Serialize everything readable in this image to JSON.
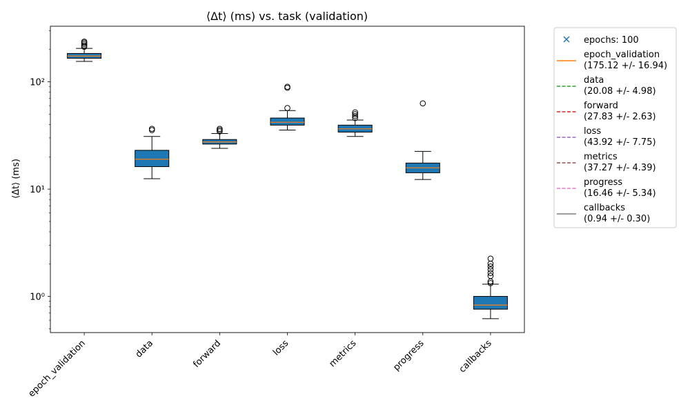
{
  "chart_data": {
    "type": "box",
    "title": "⟨Δt⟩ (ms) vs. task (validation)",
    "ylabel": "⟨Δt⟩ (ms)",
    "xlabel": "",
    "yscale": "log",
    "ylim": [
      0.46,
      330
    ],
    "yticks": [
      {
        "value": 1,
        "label": "10⁰"
      },
      {
        "value": 10,
        "label": "10¹"
      },
      {
        "value": 100,
        "label": "10²"
      }
    ],
    "grid": false,
    "box_color": "#1f77b4",
    "median_color": "#ff7f0e",
    "categories": [
      "epoch_validation",
      "data",
      "forward",
      "loss",
      "metrics",
      "progress",
      "callbacks"
    ],
    "boxes": [
      {
        "name": "epoch_validation",
        "whisker_low": 155,
        "q1": 166,
        "median": 174,
        "q3": 184,
        "whisker_high": 205,
        "outliers": [
          212,
          218,
          225,
          232,
          237
        ]
      },
      {
        "name": "data",
        "whisker_low": 12.5,
        "q1": 16.2,
        "median": 19.0,
        "q3": 23.0,
        "whisker_high": 31.0,
        "outliers": [
          35.5,
          36.5
        ]
      },
      {
        "name": "forward",
        "whisker_low": 24.0,
        "q1": 26.3,
        "median": 27.5,
        "q3": 29.0,
        "whisker_high": 33.0,
        "outliers": [
          34.5,
          35.5,
          36.5
        ]
      },
      {
        "name": "loss",
        "whisker_low": 35.5,
        "q1": 39.5,
        "median": 42.0,
        "q3": 46.0,
        "whisker_high": 54.0,
        "outliers": [
          57.0,
          88.0,
          90.0
        ]
      },
      {
        "name": "metrics",
        "whisker_low": 31.0,
        "q1": 34.0,
        "median": 36.5,
        "q3": 39.5,
        "whisker_high": 44.0,
        "outliers": [
          46.0,
          48.0,
          50.0,
          52.0
        ]
      },
      {
        "name": "progress",
        "whisker_low": 12.3,
        "q1": 14.2,
        "median": 15.8,
        "q3": 17.5,
        "whisker_high": 22.5,
        "outliers": [
          63.0
        ]
      },
      {
        "name": "callbacks",
        "whisker_low": 0.62,
        "q1": 0.76,
        "median": 0.83,
        "q3": 1.0,
        "whisker_high": 1.3,
        "outliers": [
          1.33,
          1.38,
          1.55,
          1.65,
          1.78,
          1.9,
          2.02,
          2.25
        ]
      }
    ],
    "legend": {
      "placement": "outside-right",
      "entries": [
        {
          "label": "epochs: 100",
          "marker": "x",
          "color": "#1f77b4"
        },
        {
          "label": "epoch_validation",
          "sub": "(175.12 +/- 16.94)",
          "line": "solid",
          "color": "#ff7f0e"
        },
        {
          "label": "data",
          "sub": "(20.08 +/- 4.98)",
          "line": "dashed",
          "color": "#2ca02c"
        },
        {
          "label": "forward",
          "sub": "(27.83 +/- 2.63)",
          "line": "dashed",
          "color": "#d62728"
        },
        {
          "label": "loss",
          "sub": "(43.92 +/- 7.75)",
          "line": "dashed",
          "color": "#9467bd"
        },
        {
          "label": "metrics",
          "sub": "(37.27 +/- 4.39)",
          "line": "dashed",
          "color": "#8c564b"
        },
        {
          "label": "progress",
          "sub": "(16.46 +/- 5.34)",
          "line": "dashed",
          "color": "#e377c2"
        },
        {
          "label": "callbacks",
          "sub": "(0.94 +/- 0.30)",
          "line": "solid",
          "color": "#7f7f7f"
        }
      ]
    }
  }
}
